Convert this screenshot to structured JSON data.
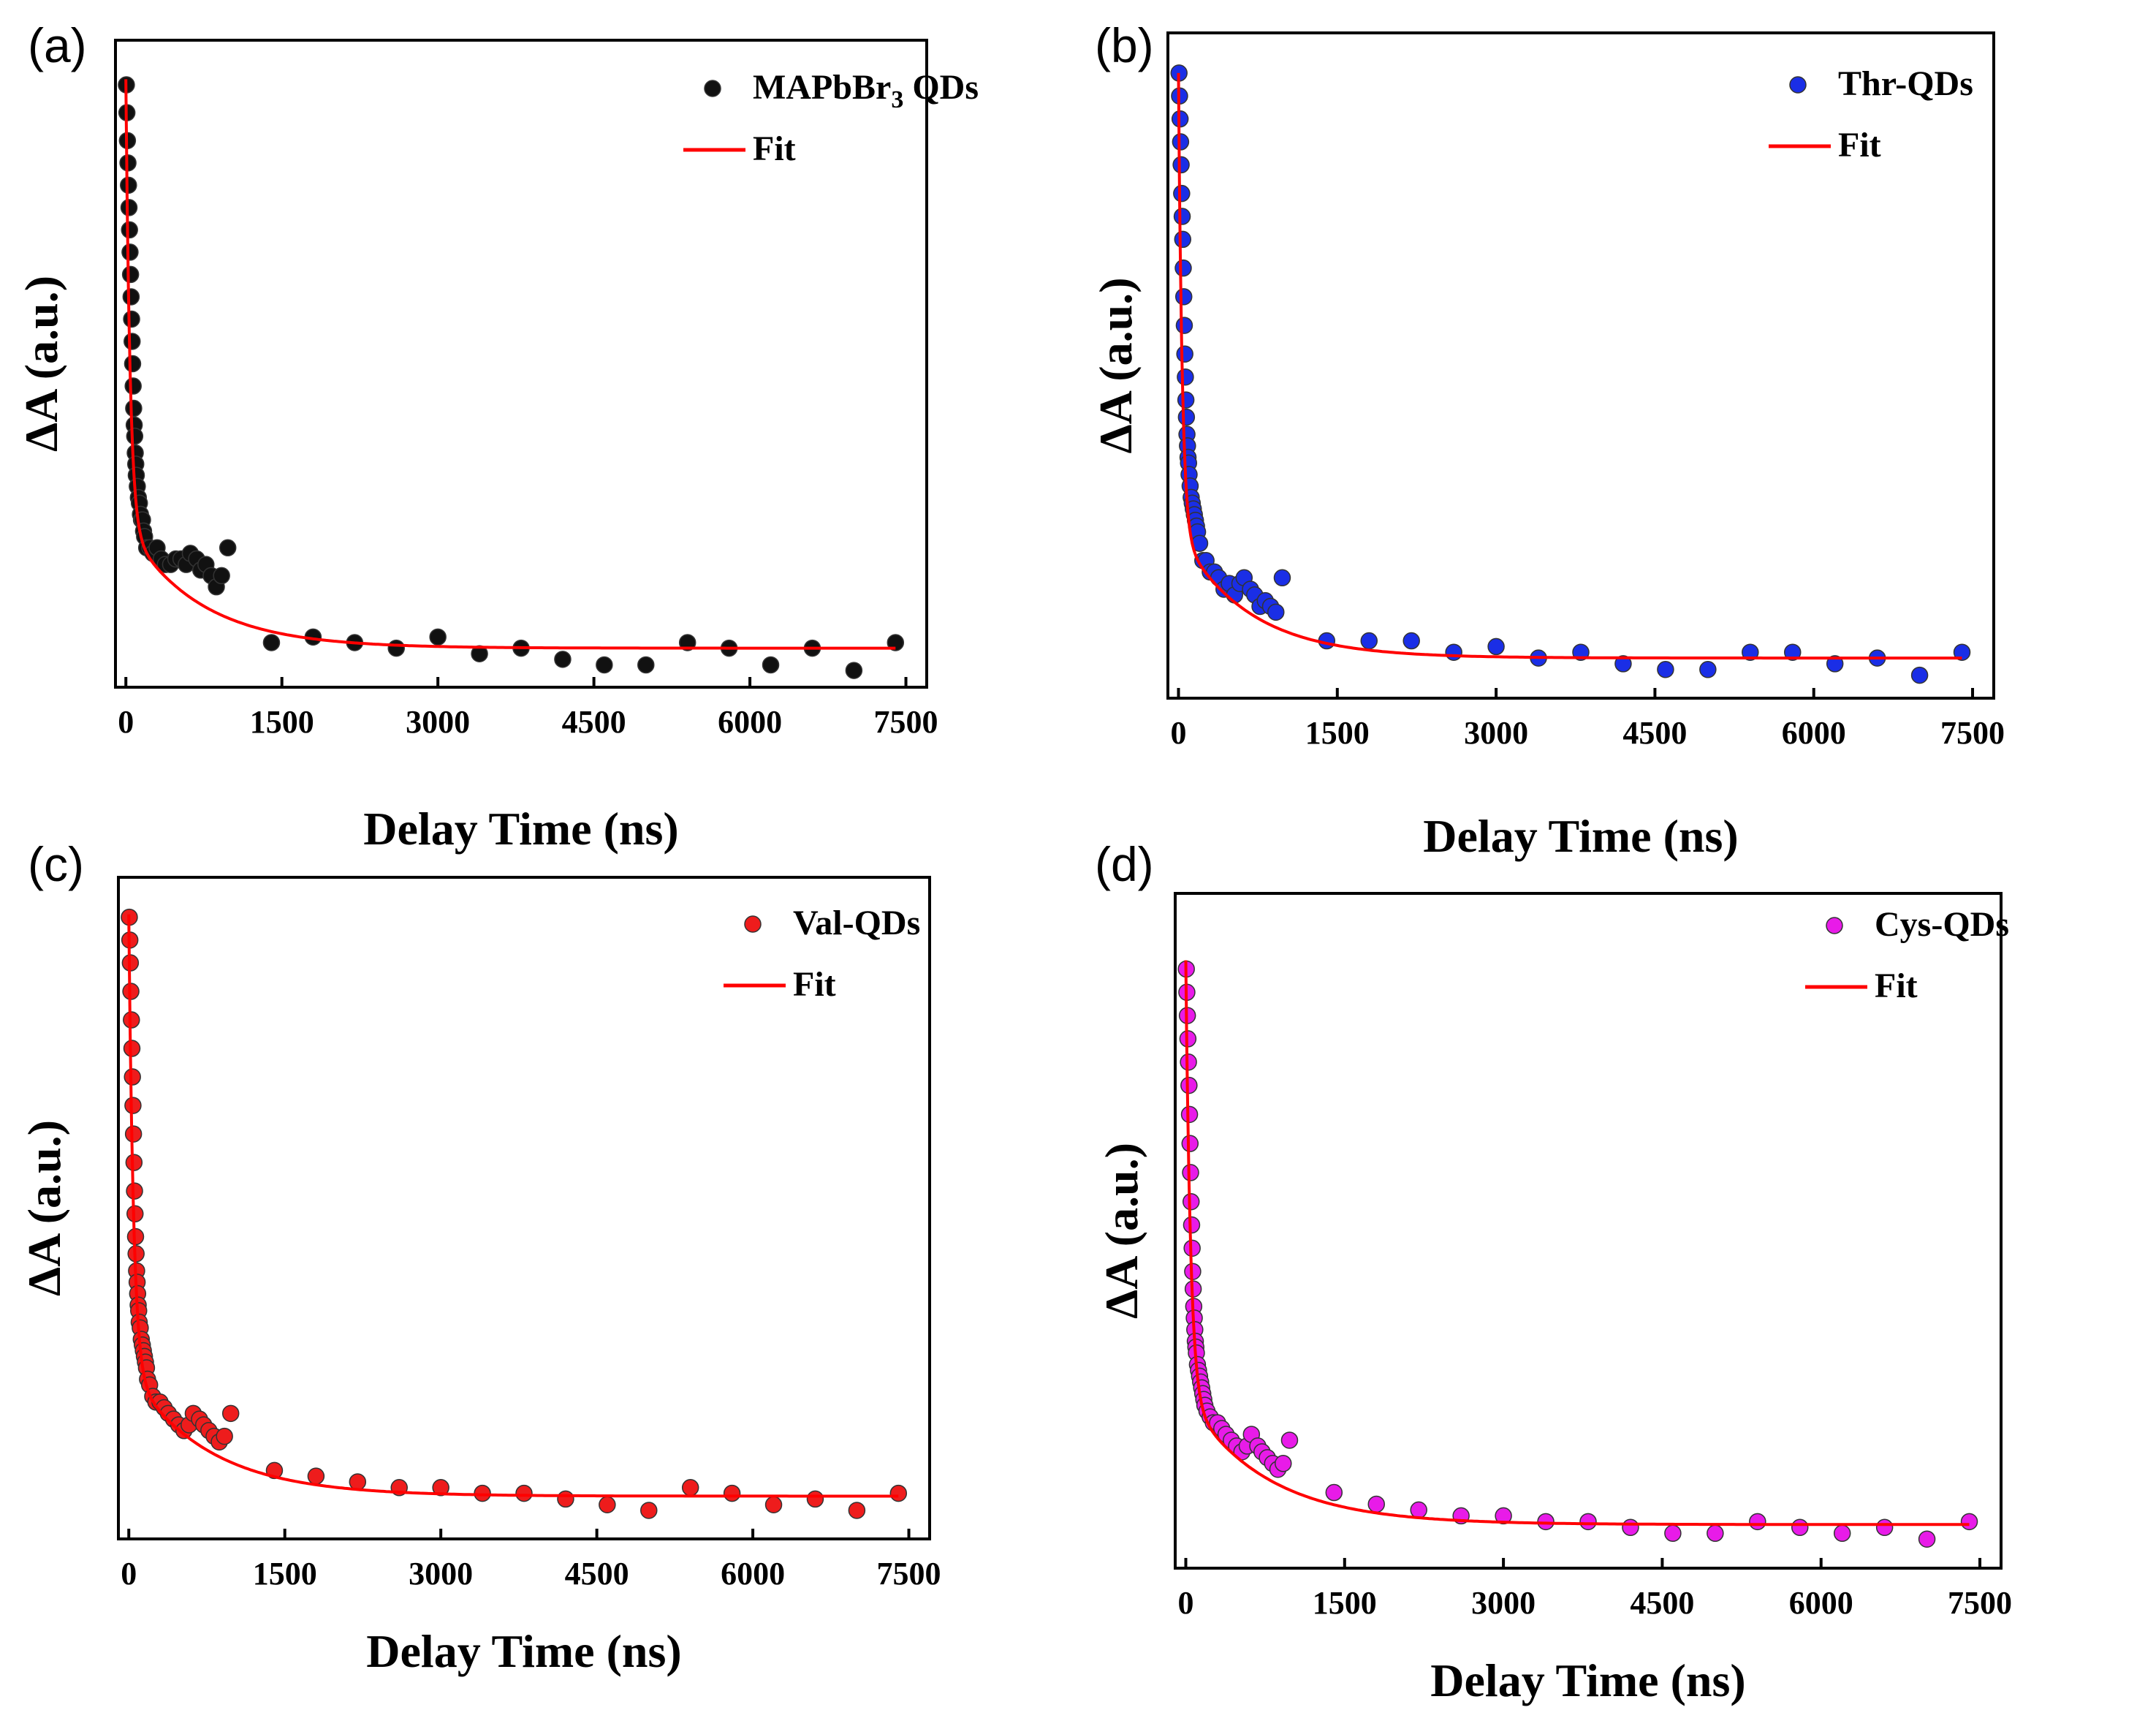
{
  "figure": {
    "panels": [
      "(a)",
      "(b)",
      "(c)",
      "(d)"
    ]
  },
  "chart_data": [
    {
      "type": "scatter",
      "panel": "(a)",
      "title": "",
      "xlabel": "Delay Time (ns)",
      "ylabel": "ΔA (a.u.)",
      "xlim": [
        -100,
        7700
      ],
      "ylim": [
        -0.08,
        1.08
      ],
      "xticks": [
        "0",
        "1500",
        "3000",
        "4500",
        "6000",
        "7500"
      ],
      "xtick_values": [
        0,
        1500,
        3000,
        4500,
        6000,
        7500
      ],
      "legend": {
        "position": "top-right",
        "data_label": "MAPbBr",
        "data_label_sub": "3",
        "data_label_tail": " QDs",
        "fit_label": "Fit"
      },
      "marker_color": "#111111",
      "fit_color": "#ff0000",
      "points_x": [
        5,
        10,
        15,
        20,
        25,
        30,
        35,
        40,
        45,
        50,
        55,
        60,
        65,
        70,
        75,
        80,
        85,
        90,
        95,
        100,
        110,
        120,
        130,
        140,
        150,
        160,
        170,
        180,
        200,
        230,
        260,
        300,
        340,
        380,
        430,
        480,
        530,
        580,
        620,
        680,
        720,
        770,
        820,
        870,
        920,
        980,
        1400,
        1800,
        2200,
        2600,
        3000,
        3400,
        3800,
        4200,
        4600,
        5000,
        5400,
        5800,
        6200,
        6600,
        7000,
        7400
      ],
      "points_y": [
        1.0,
        0.95,
        0.9,
        0.86,
        0.82,
        0.78,
        0.74,
        0.7,
        0.66,
        0.62,
        0.58,
        0.54,
        0.5,
        0.46,
        0.42,
        0.39,
        0.37,
        0.34,
        0.32,
        0.3,
        0.28,
        0.26,
        0.25,
        0.23,
        0.22,
        0.22,
        0.2,
        0.19,
        0.17,
        0.17,
        0.16,
        0.17,
        0.15,
        0.14,
        0.14,
        0.15,
        0.15,
        0.14,
        0.16,
        0.15,
        0.13,
        0.14,
        0.12,
        0.1,
        0.12,
        0.17,
        0.0,
        0.01,
        0.0,
        -0.01,
        0.01,
        -0.02,
        -0.01,
        -0.03,
        -0.04,
        -0.04,
        0.0,
        -0.01,
        -0.04,
        -0.01,
        -0.05,
        0.0
      ],
      "fit": {
        "A1": 0.8,
        "tau1_ns": 40,
        "A2": 0.22,
        "tau2_ns": 700,
        "offset": -0.01
      }
    },
    {
      "type": "scatter",
      "panel": "(b)",
      "title": "",
      "xlabel": "Delay Time (ns)",
      "ylabel": "ΔA (a.u.)",
      "xlim": [
        -100,
        7700
      ],
      "ylim": [
        -0.08,
        1.08
      ],
      "xticks": [
        "0",
        "1500",
        "3000",
        "4500",
        "6000",
        "7500"
      ],
      "xtick_values": [
        0,
        1500,
        3000,
        4500,
        6000,
        7500
      ],
      "legend": {
        "position": "top-right",
        "data_label": "Thr-QDs",
        "data_label_sub": "",
        "data_label_tail": "",
        "fit_label": "Fit"
      },
      "marker_color": "#1a2ee6",
      "fit_color": "#ff0000",
      "points_x": [
        5,
        10,
        15,
        20,
        25,
        30,
        35,
        40,
        45,
        50,
        55,
        60,
        65,
        70,
        75,
        80,
        85,
        90,
        95,
        100,
        110,
        120,
        130,
        140,
        150,
        160,
        170,
        180,
        200,
        230,
        260,
        300,
        340,
        380,
        430,
        480,
        530,
        580,
        620,
        680,
        720,
        770,
        820,
        870,
        920,
        980,
        1400,
        1800,
        2200,
        2600,
        3000,
        3400,
        3800,
        4200,
        4600,
        5000,
        5400,
        5800,
        6200,
        6600,
        7000,
        7400
      ],
      "points_y": [
        1.01,
        0.97,
        0.93,
        0.89,
        0.85,
        0.8,
        0.76,
        0.72,
        0.67,
        0.62,
        0.57,
        0.52,
        0.48,
        0.44,
        0.41,
        0.38,
        0.36,
        0.34,
        0.33,
        0.31,
        0.29,
        0.27,
        0.26,
        0.25,
        0.24,
        0.23,
        0.22,
        0.21,
        0.19,
        0.16,
        0.16,
        0.14,
        0.14,
        0.13,
        0.11,
        0.12,
        0.1,
        0.12,
        0.13,
        0.11,
        0.1,
        0.08,
        0.09,
        0.08,
        0.07,
        0.13,
        0.02,
        0.02,
        0.02,
        0.0,
        0.01,
        -0.01,
        0.0,
        -0.02,
        -0.03,
        -0.03,
        0.0,
        0.0,
        -0.02,
        -0.01,
        -0.04,
        0.0
      ],
      "fit": {
        "A1": 0.8,
        "tau1_ns": 35,
        "A2": 0.22,
        "tau2_ns": 650,
        "offset": -0.01
      }
    },
    {
      "type": "scatter",
      "panel": "(c)",
      "title": "",
      "xlabel": "Delay Time (ns)",
      "ylabel": "ΔA (a.u.)",
      "xlim": [
        -100,
        7700
      ],
      "ylim": [
        -0.08,
        1.08
      ],
      "xticks": [
        "0",
        "1500",
        "3000",
        "4500",
        "6000",
        "7500"
      ],
      "xtick_values": [
        0,
        1500,
        3000,
        4500,
        6000,
        7500
      ],
      "legend": {
        "position": "top-right",
        "data_label": "Val-QDs",
        "data_label_sub": "",
        "data_label_tail": "",
        "fit_label": "Fit"
      },
      "marker_color": "#ee1c1c",
      "fit_color": "#ff0000",
      "points_x": [
        5,
        10,
        15,
        20,
        25,
        30,
        35,
        40,
        45,
        50,
        55,
        60,
        65,
        70,
        75,
        80,
        85,
        90,
        95,
        100,
        110,
        120,
        130,
        140,
        150,
        160,
        170,
        180,
        200,
        230,
        260,
        300,
        340,
        380,
        430,
        480,
        530,
        580,
        620,
        680,
        720,
        770,
        820,
        870,
        920,
        980,
        1400,
        1800,
        2200,
        2600,
        3000,
        3400,
        3800,
        4200,
        4600,
        5000,
        5400,
        5800,
        6200,
        6600,
        7000,
        7400
      ],
      "points_y": [
        1.01,
        0.97,
        0.93,
        0.88,
        0.83,
        0.78,
        0.73,
        0.68,
        0.63,
        0.58,
        0.53,
        0.49,
        0.45,
        0.42,
        0.39,
        0.37,
        0.35,
        0.33,
        0.32,
        0.3,
        0.29,
        0.27,
        0.26,
        0.25,
        0.24,
        0.23,
        0.22,
        0.2,
        0.19,
        0.17,
        0.16,
        0.16,
        0.15,
        0.14,
        0.13,
        0.12,
        0.11,
        0.12,
        0.14,
        0.13,
        0.12,
        0.11,
        0.1,
        0.09,
        0.1,
        0.14,
        0.04,
        0.03,
        0.02,
        0.01,
        0.01,
        0.0,
        0.0,
        -0.01,
        -0.02,
        -0.03,
        0.01,
        0.0,
        -0.02,
        -0.01,
        -0.03,
        0.0
      ],
      "fit": {
        "A1": 0.8,
        "tau1_ns": 45,
        "A2": 0.22,
        "tau2_ns": 750,
        "offset": -0.005
      }
    },
    {
      "type": "scatter",
      "panel": "(d)",
      "title": "",
      "xlabel": "Delay Time (ns)",
      "ylabel": "ΔA (a.u.)",
      "xlim": [
        -100,
        7700
      ],
      "ylim": [
        -0.08,
        1.08
      ],
      "xticks": [
        "0",
        "1500",
        "3000",
        "4500",
        "6000",
        "7500"
      ],
      "xtick_values": [
        0,
        1500,
        3000,
        4500,
        6000,
        7500
      ],
      "legend": {
        "position": "top-right",
        "data_label": "Cys-QDs",
        "data_label_sub": "",
        "data_label_tail": "",
        "fit_label": "Fit"
      },
      "marker_color": "#e81be8",
      "fit_color": "#ff0000",
      "points_x": [
        5,
        10,
        15,
        20,
        25,
        30,
        35,
        40,
        45,
        50,
        55,
        60,
        65,
        70,
        75,
        80,
        85,
        90,
        95,
        100,
        110,
        120,
        130,
        140,
        150,
        160,
        170,
        180,
        200,
        230,
        260,
        300,
        340,
        380,
        430,
        480,
        530,
        580,
        620,
        680,
        720,
        770,
        820,
        870,
        920,
        980,
        1400,
        1800,
        2200,
        2600,
        3000,
        3400,
        3800,
        4200,
        4600,
        5000,
        5400,
        5800,
        6200,
        6600,
        7000,
        7400
      ],
      "points_y": [
        0.95,
        0.91,
        0.87,
        0.83,
        0.79,
        0.75,
        0.7,
        0.65,
        0.6,
        0.55,
        0.51,
        0.47,
        0.43,
        0.4,
        0.37,
        0.35,
        0.33,
        0.31,
        0.3,
        0.29,
        0.27,
        0.26,
        0.25,
        0.24,
        0.23,
        0.22,
        0.21,
        0.2,
        0.19,
        0.18,
        0.17,
        0.17,
        0.16,
        0.15,
        0.14,
        0.13,
        0.12,
        0.13,
        0.15,
        0.13,
        0.12,
        0.11,
        0.1,
        0.09,
        0.1,
        0.14,
        0.05,
        0.03,
        0.02,
        0.01,
        0.01,
        0.0,
        0.0,
        -0.01,
        -0.02,
        -0.02,
        0.0,
        -0.01,
        -0.02,
        -0.01,
        -0.03,
        0.0
      ],
      "fit": {
        "A1": 0.75,
        "tau1_ns": 45,
        "A2": 0.22,
        "tau2_ns": 750,
        "offset": -0.005
      }
    }
  ]
}
